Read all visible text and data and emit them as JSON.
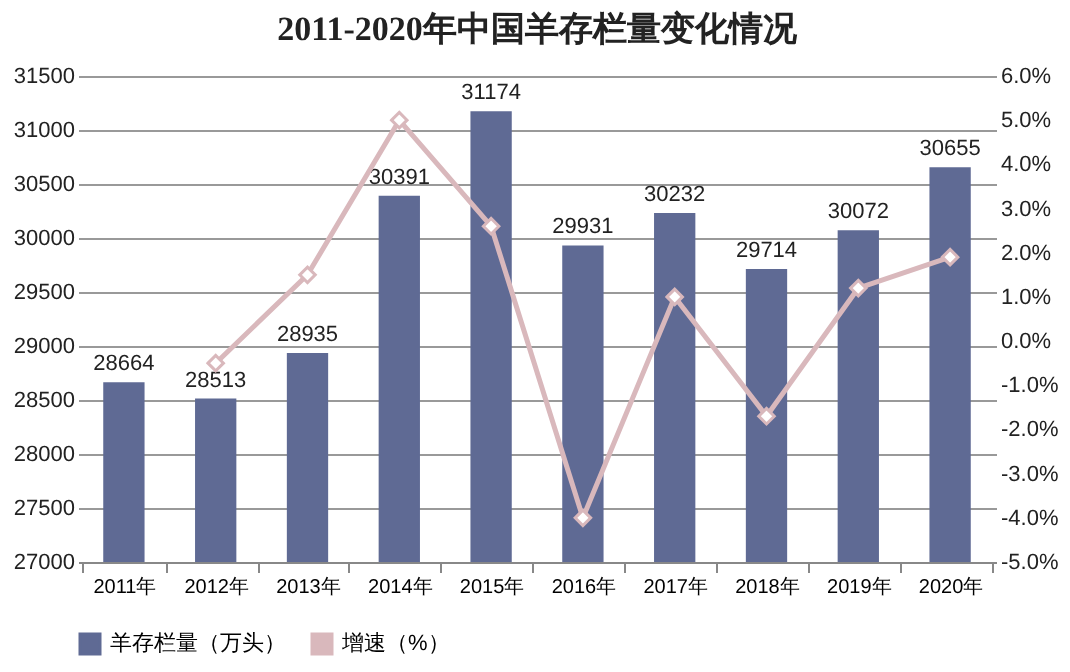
{
  "chart_data": {
    "type": "bar",
    "title": "2011-2020年中国羊存栏量变化情况",
    "categories": [
      "2011年",
      "2012年",
      "2013年",
      "2014年",
      "2015年",
      "2016年",
      "2017年",
      "2018年",
      "2019年",
      "2020年"
    ],
    "series": [
      {
        "name": "羊存栏量（万头）",
        "type": "bar",
        "color": "#5f6a94",
        "values": [
          28664,
          28513,
          28935,
          30391,
          31174,
          29931,
          30232,
          29714,
          30072,
          30655
        ],
        "value_labels": [
          "28664",
          "28513",
          "28935",
          "30391",
          "31174",
          "29931",
          "30232",
          "29714",
          "30072",
          "30655"
        ]
      },
      {
        "name": "增速（%）",
        "type": "line",
        "axis": "y2",
        "color": "#d9b8bc",
        "values": [
          null,
          -0.5,
          1.5,
          5.0,
          2.6,
          -4.0,
          1.0,
          -1.7,
          1.2,
          1.9
        ]
      }
    ],
    "ylim": [
      27000,
      31500
    ],
    "yticks": [
      27000,
      27500,
      28000,
      28500,
      29000,
      29500,
      30000,
      30500,
      31000,
      31500
    ],
    "y2lim": [
      -5,
      6
    ],
    "y2ticks": [
      {
        "value": -5,
        "label": "-5.0%"
      },
      {
        "value": -4,
        "label": "-4.0%"
      },
      {
        "value": -3,
        "label": "-3.0%"
      },
      {
        "value": -2,
        "label": "-2.0%"
      },
      {
        "value": -1,
        "label": "-1.0%"
      },
      {
        "value": 0,
        "label": "0.0%"
      },
      {
        "value": 1,
        "label": "1.0%"
      },
      {
        "value": 2,
        "label": "2.0%"
      },
      {
        "value": 3,
        "label": "3.0%"
      },
      {
        "value": 4,
        "label": "4.0%"
      },
      {
        "value": 5,
        "label": "5.0%"
      },
      {
        "value": 6,
        "label": "6.0%"
      }
    ],
    "grid": "y",
    "legend": "bottom",
    "marker": "diamond"
  }
}
